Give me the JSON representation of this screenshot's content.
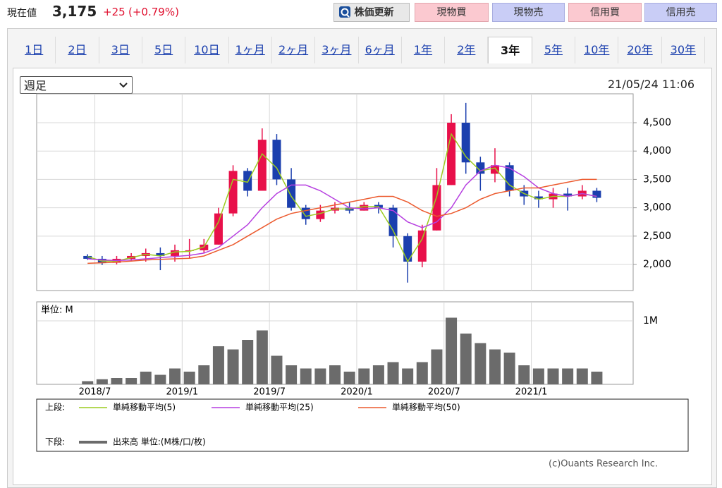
{
  "header": {
    "current_label": "現在値",
    "price": "3,175",
    "change": "+25",
    "change_pct": "(+0.79%)",
    "refresh_button": "株価更新",
    "buttons": [
      "現物買",
      "現物売",
      "信用買",
      "信用売"
    ]
  },
  "tabs": [
    "1日",
    "2日",
    "3日",
    "5日",
    "10日",
    "1ヶ月",
    "2ヶ月",
    "3ヶ月",
    "6ヶ月",
    "1年",
    "2年",
    "3年",
    "5年",
    "10年",
    "20年",
    "30年"
  ],
  "period_select": "週足",
  "timestamp": "21/05/24 11:06",
  "copyright": "(c)Ouants Research Inc.",
  "chart_data": [
    {
      "type": "candlestick",
      "legend_label": "上段:",
      "up_color": "#e8104a",
      "down_color": "#1b3fae",
      "x": [
        "2018/6",
        "2018/7",
        "2018/8",
        "2018/9",
        "2018/10",
        "2018/11",
        "2018/12",
        "2019/1",
        "2019/2",
        "2019/3",
        "2019/4",
        "2019/5",
        "2019/6",
        "2019/7",
        "2019/8",
        "2019/9",
        "2019/10",
        "2019/11",
        "2019/12",
        "2020/1",
        "2020/2",
        "2020/3",
        "2020/4",
        "2020/5",
        "2020/6",
        "2020/7",
        "2020/8",
        "2020/9",
        "2020/10",
        "2020/11",
        "2020/12",
        "2021/1",
        "2021/2",
        "2021/3",
        "2021/4",
        "2021/5"
      ],
      "open": [
        2150,
        2100,
        2030,
        2100,
        2150,
        2200,
        2150,
        2250,
        2250,
        2350,
        2900,
        3650,
        3300,
        4200,
        3500,
        3000,
        2800,
        2950,
        3000,
        2950,
        3050,
        3000,
        2500,
        2050,
        2600,
        3400,
        4500,
        3800,
        3600,
        3750,
        3300,
        3200,
        3150,
        3250,
        3200,
        3300
      ],
      "high": [
        2180,
        2150,
        2150,
        2200,
        2280,
        2300,
        2350,
        2450,
        2450,
        3000,
        3750,
        3700,
        4400,
        4300,
        3700,
        3050,
        3050,
        3100,
        3100,
        3100,
        3100,
        3050,
        2550,
        2700,
        3700,
        4650,
        4850,
        3900,
        4050,
        3800,
        3400,
        3300,
        3350,
        3350,
        3400,
        3350
      ],
      "low": [
        2080,
        1990,
        2000,
        2060,
        2050,
        1900,
        2050,
        2100,
        2200,
        2350,
        2850,
        3200,
        3300,
        3400,
        2950,
        2700,
        2750,
        2900,
        2900,
        2950,
        2900,
        2300,
        1680,
        1950,
        2600,
        3400,
        3600,
        3300,
        3450,
        3200,
        3050,
        3000,
        3000,
        2950,
        3150,
        3100
      ],
      "close": [
        2100,
        2030,
        2100,
        2150,
        2200,
        2150,
        2250,
        2250,
        2350,
        2900,
        3650,
        3300,
        4200,
        3500,
        3000,
        2800,
        2950,
        3000,
        2950,
        3050,
        3000,
        2500,
        2050,
        2600,
        3400,
        4500,
        3800,
        3600,
        3750,
        3300,
        3200,
        3150,
        3250,
        3200,
        3300,
        3175
      ],
      "series": [
        {
          "name": "単純移動平均(5)",
          "color": "#9ccc1f",
          "values": [
            2140,
            2060,
            2060,
            2120,
            2180,
            2150,
            2220,
            2230,
            2310,
            2750,
            3500,
            3450,
            3950,
            3700,
            3200,
            2850,
            2900,
            2980,
            2980,
            3020,
            3020,
            2600,
            2050,
            2450,
            3200,
            4300,
            3900,
            3650,
            3700,
            3400,
            3250,
            3150,
            3200,
            3200,
            3250,
            3200
          ]
        },
        {
          "name": "単純移動平均(25)",
          "color": "#b63fe0",
          "values": [
            2100,
            2080,
            2070,
            2080,
            2100,
            2120,
            2140,
            2160,
            2200,
            2300,
            2500,
            2700,
            3000,
            3250,
            3400,
            3400,
            3300,
            3150,
            3000,
            2980,
            3000,
            2950,
            2750,
            2650,
            2750,
            3000,
            3400,
            3650,
            3750,
            3700,
            3550,
            3350,
            3250,
            3200,
            3250,
            3200
          ]
        },
        {
          "name": "単純移動平均(50)",
          "color": "#ec5a2e",
          "values": [
            2020,
            2030,
            2040,
            2060,
            2080,
            2090,
            2100,
            2110,
            2150,
            2250,
            2350,
            2500,
            2650,
            2800,
            2900,
            2950,
            3000,
            3050,
            3100,
            3150,
            3200,
            3200,
            3100,
            2950,
            2850,
            2900,
            3000,
            3150,
            3250,
            3300,
            3350,
            3350,
            3400,
            3450,
            3500,
            3500
          ]
        }
      ],
      "xlim": [
        "2018/3",
        "2021/8"
      ],
      "ylim": [
        1540,
        5010
      ],
      "yticks": [
        {
          "value": 2000,
          "label": "2,000"
        },
        {
          "value": 2500,
          "label": "2,500"
        },
        {
          "value": 3000,
          "label": "3,000"
        },
        {
          "value": 3500,
          "label": "3,500"
        },
        {
          "value": 4000,
          "label": "4,000"
        },
        {
          "value": 4500,
          "label": "4,500"
        }
      ],
      "grid": true
    },
    {
      "type": "bar",
      "legend_label": "下段:",
      "unit_label": "単位: M",
      "x": [
        "2018/6",
        "2018/7",
        "2018/8",
        "2018/9",
        "2018/10",
        "2018/11",
        "2018/12",
        "2019/1",
        "2019/2",
        "2019/3",
        "2019/4",
        "2019/5",
        "2019/6",
        "2019/7",
        "2019/8",
        "2019/9",
        "2019/10",
        "2019/11",
        "2019/12",
        "2020/1",
        "2020/2",
        "2020/3",
        "2020/4",
        "2020/5",
        "2020/6",
        "2020/7",
        "2020/8",
        "2020/9",
        "2020/10",
        "2020/11",
        "2020/12",
        "2021/1",
        "2021/2",
        "2021/3",
        "2021/4",
        "2021/5"
      ],
      "series": [
        {
          "name": "出来高 単位:(M株/口/枚)",
          "color": "#6b6b6b",
          "values": [
            0.05,
            0.08,
            0.1,
            0.1,
            0.2,
            0.15,
            0.25,
            0.2,
            0.3,
            0.6,
            0.55,
            0.7,
            0.85,
            0.45,
            0.3,
            0.25,
            0.25,
            0.3,
            0.2,
            0.25,
            0.3,
            0.35,
            0.25,
            0.35,
            0.55,
            1.05,
            0.8,
            0.65,
            0.55,
            0.5,
            0.3,
            0.25,
            0.25,
            0.25,
            0.25,
            0.2
          ]
        }
      ],
      "xlim": [
        "2018/3",
        "2021/8"
      ],
      "xticks": [
        "2018/7",
        "2019/1",
        "2019/7",
        "2020/1",
        "2020/7",
        "2021/1"
      ],
      "ylim": [
        0,
        1.3
      ],
      "yticks": [
        {
          "value": 1,
          "label": "1M"
        }
      ],
      "grid": true
    }
  ]
}
